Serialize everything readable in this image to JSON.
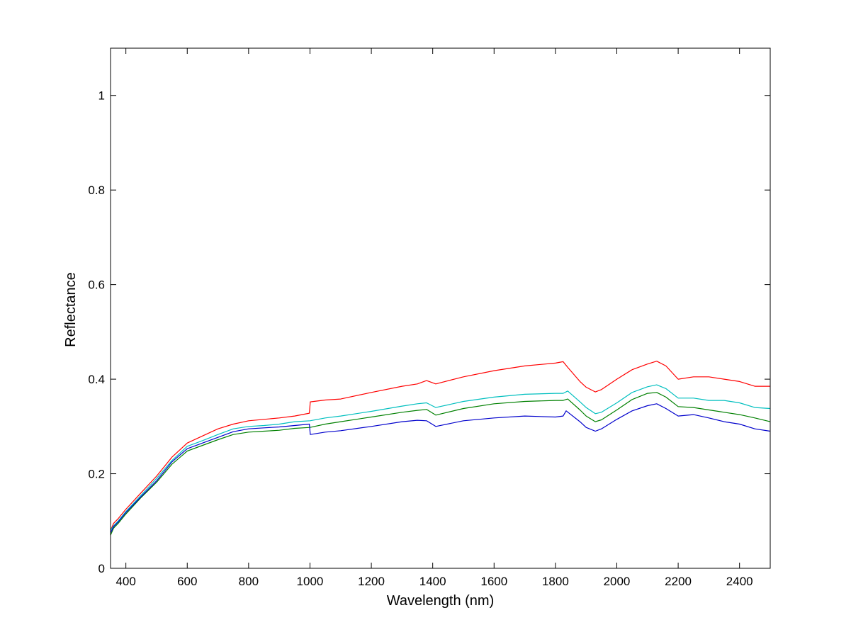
{
  "chart_data": {
    "type": "line",
    "title": "",
    "xlabel": "Wavelength (nm)",
    "ylabel": "Reflectance",
    "xlim": [
      350,
      2500
    ],
    "ylim": [
      0,
      1.1
    ],
    "xticks": [
      400,
      600,
      800,
      1000,
      1200,
      1400,
      1600,
      1800,
      2000,
      2200,
      2400
    ],
    "yticks": [
      0,
      0.2,
      0.4,
      0.6,
      0.8,
      1
    ],
    "xtick_labels": [
      "400",
      "600",
      "800",
      "1000",
      "1200",
      "1400",
      "1600",
      "1800",
      "2000",
      "2200",
      "2400"
    ],
    "ytick_labels": [
      "0",
      "0.2",
      "0.4",
      "0.6",
      "0.8",
      "1"
    ],
    "grid": false,
    "legend": "none",
    "series": [
      {
        "color": "#ff0000",
        "x": [
          350,
          360,
          375,
          400,
          450,
          500,
          550,
          600,
          650,
          700,
          750,
          800,
          850,
          900,
          950,
          998,
          1001,
          1050,
          1100,
          1200,
          1300,
          1350,
          1380,
          1410,
          1500,
          1600,
          1700,
          1800,
          1825,
          1840,
          1880,
          1900,
          1930,
          1950,
          2000,
          2050,
          2100,
          2130,
          2160,
          2200,
          2250,
          2300,
          2350,
          2400,
          2450,
          2500
        ],
        "y": [
          0.08,
          0.095,
          0.105,
          0.125,
          0.16,
          0.195,
          0.235,
          0.265,
          0.28,
          0.295,
          0.305,
          0.312,
          0.315,
          0.318,
          0.322,
          0.328,
          0.352,
          0.356,
          0.358,
          0.372,
          0.385,
          0.39,
          0.397,
          0.39,
          0.405,
          0.418,
          0.428,
          0.434,
          0.437,
          0.425,
          0.395,
          0.383,
          0.373,
          0.378,
          0.4,
          0.42,
          0.432,
          0.438,
          0.428,
          0.4,
          0.405,
          0.405,
          0.4,
          0.395,
          0.385,
          0.385
        ]
      },
      {
        "color": "#00bfbf",
        "x": [
          350,
          360,
          375,
          400,
          450,
          500,
          550,
          600,
          650,
          700,
          750,
          800,
          850,
          900,
          950,
          1000,
          1050,
          1100,
          1200,
          1300,
          1350,
          1380,
          1410,
          1500,
          1600,
          1700,
          1800,
          1825,
          1840,
          1880,
          1900,
          1930,
          1950,
          2000,
          2050,
          2100,
          2130,
          2160,
          2200,
          2250,
          2300,
          2350,
          2400,
          2450,
          2500
        ],
        "y": [
          0.08,
          0.09,
          0.1,
          0.12,
          0.155,
          0.19,
          0.228,
          0.258,
          0.27,
          0.283,
          0.295,
          0.3,
          0.302,
          0.305,
          0.31,
          0.312,
          0.318,
          0.322,
          0.332,
          0.343,
          0.348,
          0.35,
          0.34,
          0.353,
          0.362,
          0.368,
          0.37,
          0.37,
          0.375,
          0.352,
          0.34,
          0.327,
          0.33,
          0.35,
          0.372,
          0.384,
          0.388,
          0.38,
          0.36,
          0.36,
          0.355,
          0.355,
          0.35,
          0.34,
          0.338
        ]
      },
      {
        "color": "#008000",
        "x": [
          350,
          360,
          375,
          400,
          450,
          500,
          550,
          600,
          650,
          700,
          750,
          800,
          850,
          900,
          950,
          1000,
          1050,
          1100,
          1200,
          1300,
          1350,
          1380,
          1410,
          1500,
          1600,
          1700,
          1800,
          1825,
          1840,
          1880,
          1900,
          1930,
          1950,
          2000,
          2050,
          2100,
          2130,
          2160,
          2200,
          2250,
          2300,
          2350,
          2400,
          2450,
          2500
        ],
        "y": [
          0.07,
          0.085,
          0.095,
          0.115,
          0.15,
          0.182,
          0.22,
          0.248,
          0.26,
          0.272,
          0.283,
          0.288,
          0.29,
          0.292,
          0.296,
          0.298,
          0.305,
          0.31,
          0.32,
          0.33,
          0.334,
          0.336,
          0.324,
          0.338,
          0.348,
          0.353,
          0.355,
          0.355,
          0.358,
          0.335,
          0.322,
          0.31,
          0.314,
          0.335,
          0.357,
          0.37,
          0.372,
          0.362,
          0.342,
          0.34,
          0.335,
          0.33,
          0.325,
          0.318,
          0.31
        ]
      },
      {
        "color": "#0000cc",
        "x": [
          350,
          360,
          375,
          400,
          450,
          500,
          550,
          600,
          650,
          700,
          750,
          800,
          850,
          900,
          950,
          998,
          1001,
          1050,
          1100,
          1200,
          1300,
          1350,
          1380,
          1410,
          1500,
          1600,
          1700,
          1800,
          1825,
          1835,
          1880,
          1900,
          1930,
          1950,
          2000,
          2050,
          2100,
          2130,
          2160,
          2200,
          2250,
          2300,
          2350,
          2400,
          2450,
          2500
        ],
        "y": [
          0.075,
          0.088,
          0.098,
          0.118,
          0.152,
          0.185,
          0.225,
          0.253,
          0.265,
          0.277,
          0.289,
          0.295,
          0.297,
          0.299,
          0.302,
          0.305,
          0.283,
          0.288,
          0.291,
          0.3,
          0.31,
          0.313,
          0.312,
          0.3,
          0.312,
          0.318,
          0.322,
          0.32,
          0.322,
          0.333,
          0.31,
          0.298,
          0.29,
          0.295,
          0.315,
          0.333,
          0.344,
          0.348,
          0.338,
          0.322,
          0.325,
          0.318,
          0.31,
          0.305,
          0.295,
          0.29
        ]
      }
    ]
  }
}
